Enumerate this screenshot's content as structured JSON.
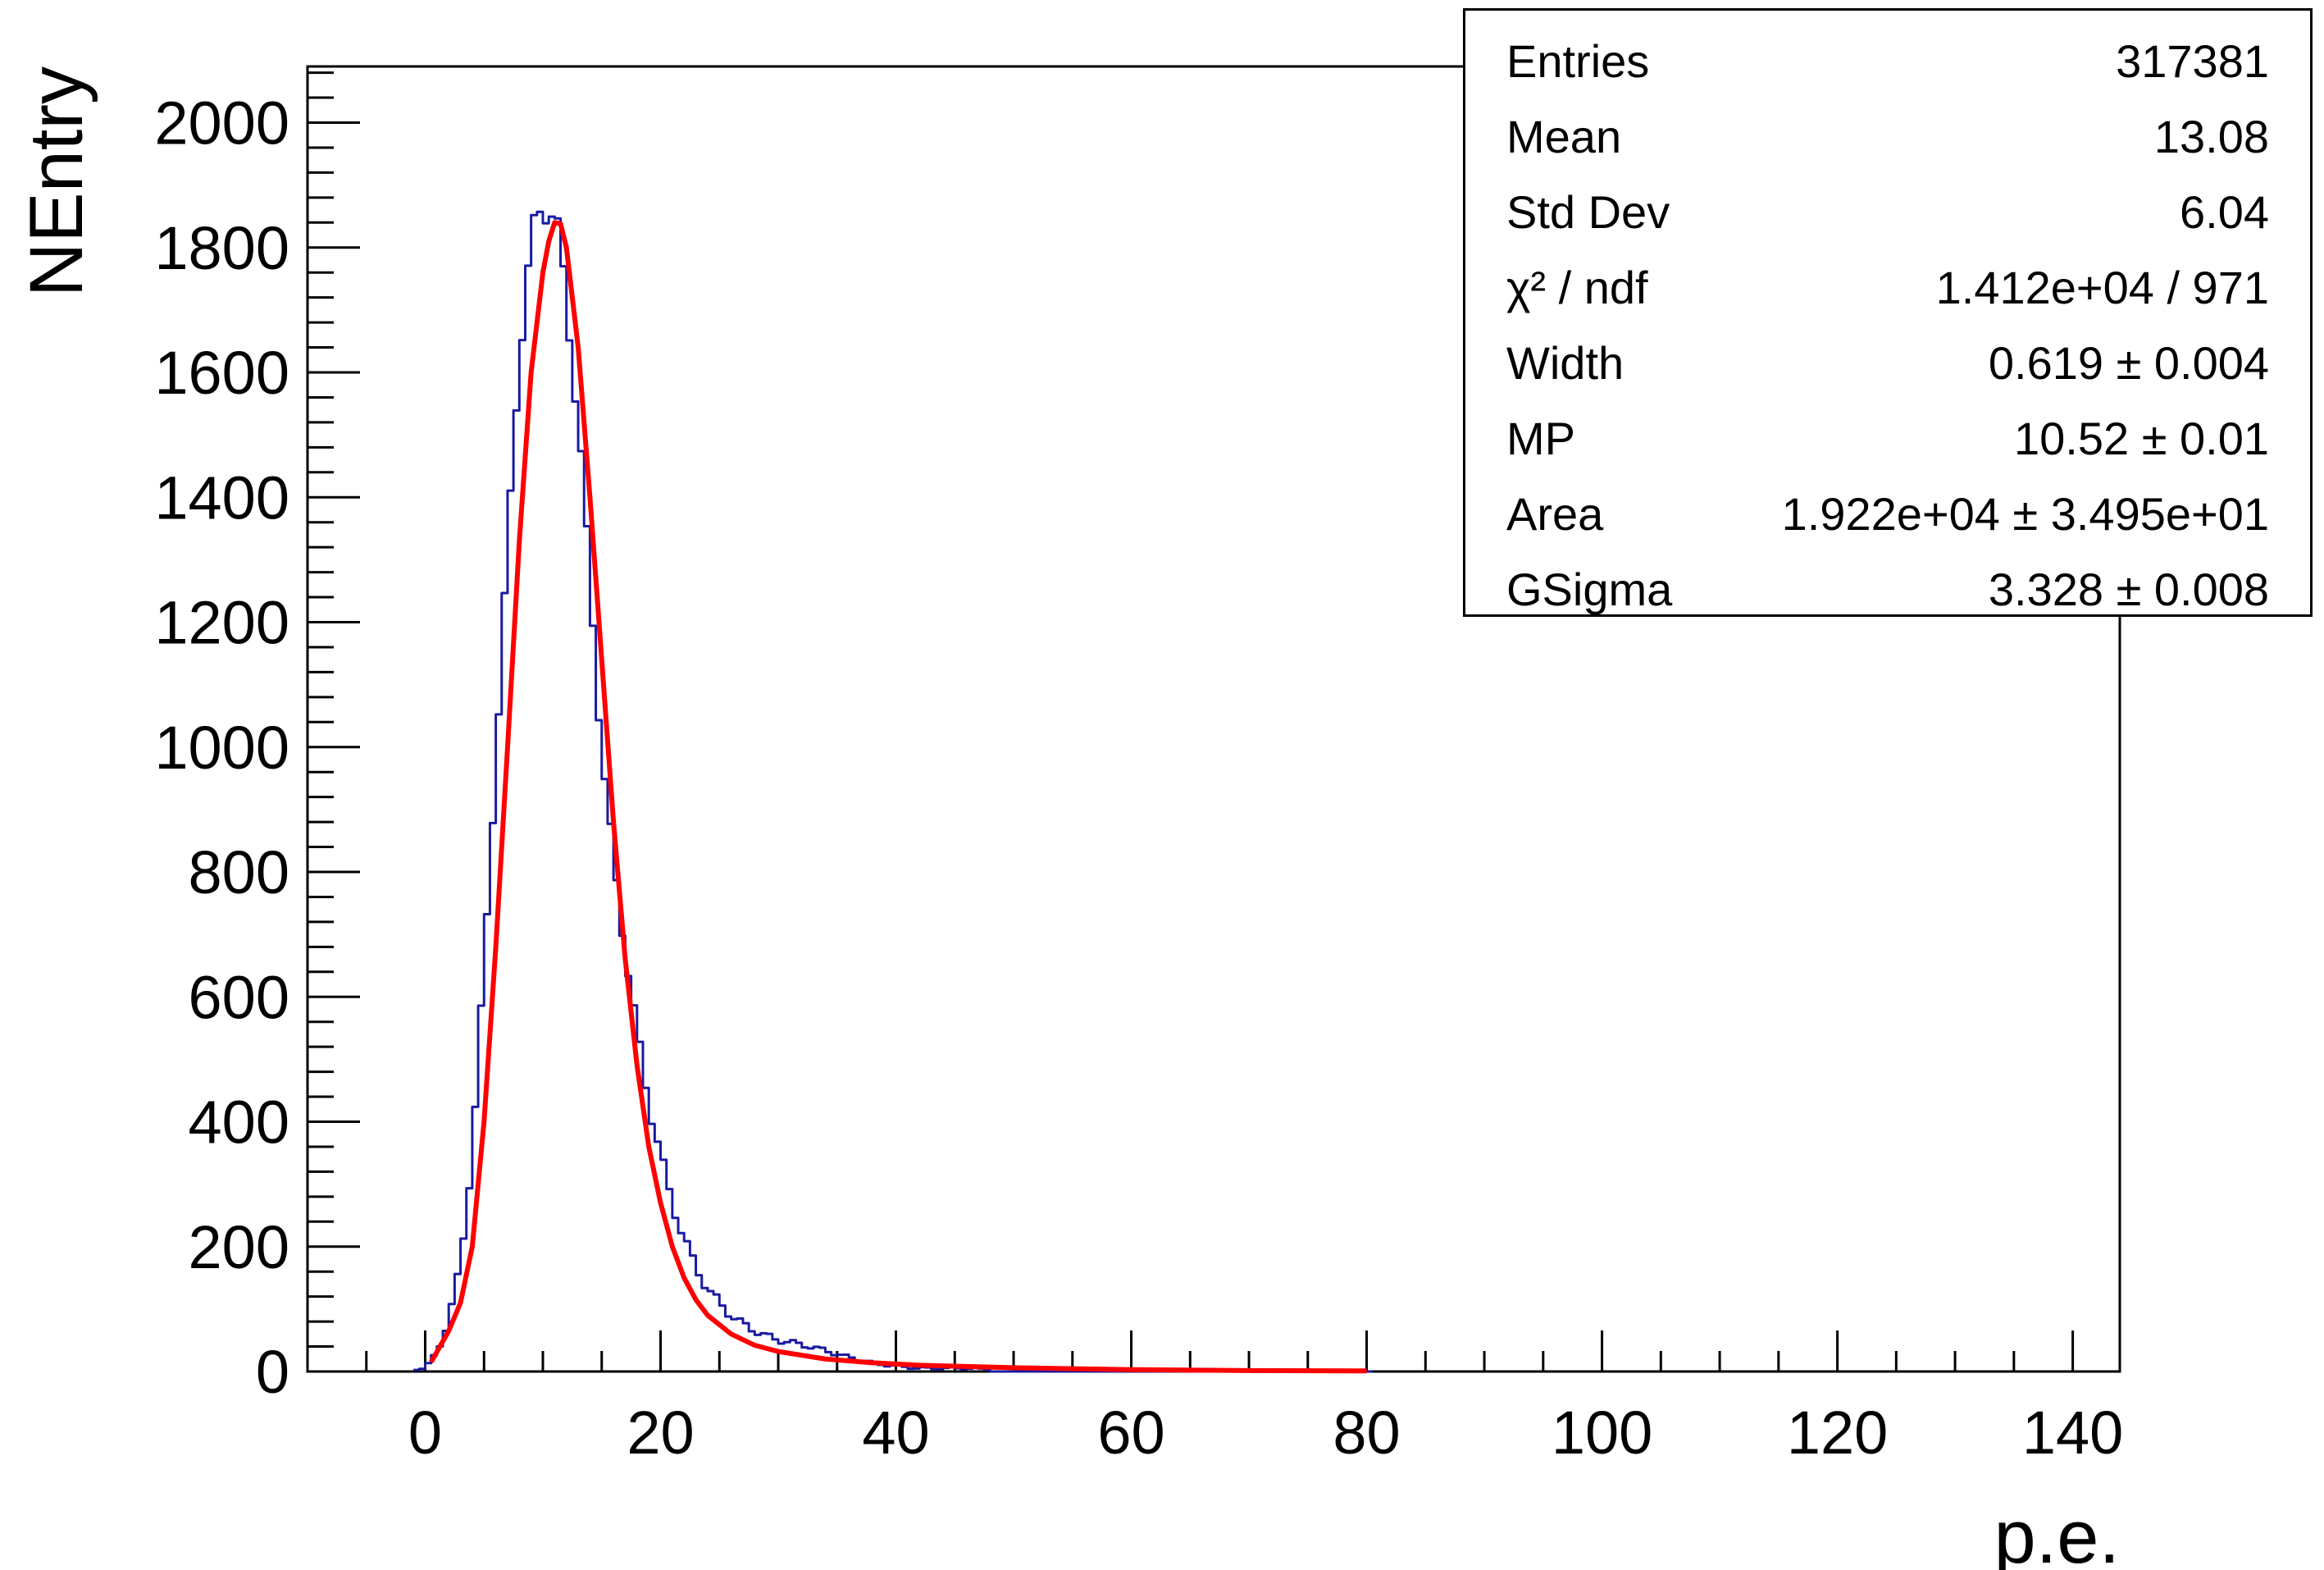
{
  "chart_data": {
    "type": "line",
    "xlabel": "p.e.",
    "ylabel": "NEntry",
    "xlim": [
      -10,
      144
    ],
    "ylim": [
      0,
      2090
    ],
    "x_ticks": [
      0,
      20,
      40,
      60,
      80,
      100,
      120,
      140
    ],
    "y_ticks": [
      0,
      200,
      400,
      600,
      800,
      1000,
      1200,
      1400,
      1600,
      1800,
      2000
    ],
    "grid": false,
    "series": [
      {
        "color": "#1a1aa0",
        "style": "histogram",
        "x": [
          0,
          1,
          2,
          3,
          4,
          5,
          6,
          7,
          8,
          9,
          10,
          11,
          12,
          13,
          14,
          15,
          16,
          17,
          18,
          19,
          20,
          21,
          22,
          23,
          24,
          25,
          26,
          27,
          28,
          29,
          30,
          32,
          34,
          36,
          38,
          40,
          42,
          44,
          46,
          48
        ],
        "y": [
          5,
          30,
          75,
          160,
          330,
          620,
          960,
          1300,
          1640,
          1830,
          1910,
          1900,
          1760,
          1560,
          1280,
          1000,
          800,
          660,
          520,
          410,
          330,
          260,
          210,
          170,
          140,
          120,
          100,
          85,
          72,
          60,
          50,
          38,
          28,
          20,
          15,
          12,
          8,
          6,
          4,
          2
        ]
      },
      {
        "color": "#ff0000",
        "style": "fit",
        "x": [
          0.5,
          2,
          3,
          4,
          5,
          6,
          7,
          8,
          9,
          10,
          10.5,
          11,
          11.5,
          12,
          13,
          14,
          15,
          16,
          17,
          18,
          19,
          20,
          21,
          22,
          23,
          24,
          26,
          28,
          30,
          34,
          38,
          42,
          50,
          60,
          70,
          80
        ],
        "y": [
          15,
          65,
          110,
          200,
          400,
          680,
          1000,
          1330,
          1600,
          1760,
          1810,
          1840,
          1838,
          1800,
          1640,
          1400,
          1140,
          880,
          660,
          490,
          360,
          270,
          200,
          150,
          115,
          90,
          60,
          42,
          32,
          20,
          14,
          10,
          6,
          3,
          1.5,
          1
        ]
      }
    ]
  },
  "stats": {
    "rows": [
      {
        "label": "Entries",
        "value": "317381"
      },
      {
        "label": "Mean",
        "value": "13.08"
      },
      {
        "label": "Std Dev",
        "value": "6.04"
      },
      {
        "label": "χ² / ndf",
        "value": "1.412e+04 / 971"
      },
      {
        "label": "Width",
        "value": "0.619 ± 0.004"
      },
      {
        "label": "MP",
        "value": "10.52 ± 0.01"
      },
      {
        "label": "Area",
        "value": "1.922e+04 ± 3.495e+01"
      },
      {
        "label": "GSigma",
        "value": "3.328 ± 0.008"
      }
    ]
  }
}
